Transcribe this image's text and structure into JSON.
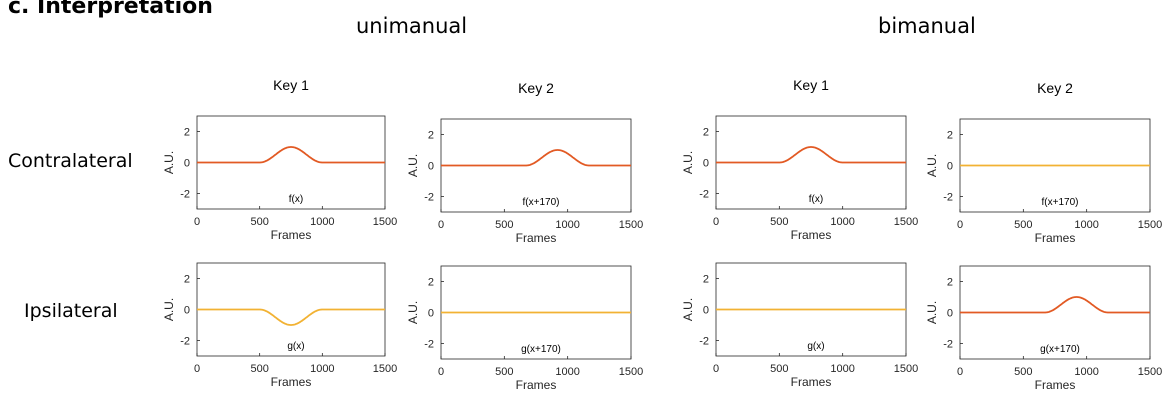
{
  "figure": {
    "panel_title": "c. Interpretation",
    "groups": [
      "unimanual",
      "bimanual"
    ],
    "rows": [
      "Contralateral",
      "Ipsilateral"
    ]
  },
  "colors": {
    "orange": "#e25a24",
    "yellow": "#f2b233",
    "axis": "#262626"
  },
  "chart_data": [
    {
      "id": "uni-contra-key1",
      "type": "line",
      "title": "Key 1",
      "annotation": "f(x)",
      "xlabel": "Frames",
      "ylabel": "A.U.",
      "xlim": [
        0,
        1500
      ],
      "ylim": [
        -3,
        3
      ],
      "xticks": [
        0,
        500,
        1000,
        1500
      ],
      "yticks": [
        2,
        0,
        -2
      ],
      "series": [
        {
          "color": "orange",
          "shift": 0,
          "amplitude": 1
        }
      ]
    },
    {
      "id": "uni-contra-key2",
      "type": "line",
      "title": "Key 2",
      "annotation": "f(x+170)",
      "xlabel": "Frames",
      "ylabel": "A.U.",
      "xlim": [
        0,
        1500
      ],
      "ylim": [
        -3,
        3
      ],
      "xticks": [
        0,
        500,
        1000,
        1500
      ],
      "yticks": [
        2,
        0,
        -2
      ],
      "series": [
        {
          "color": "orange",
          "shift": 170,
          "amplitude": 1
        }
      ]
    },
    {
      "id": "bi-contra-key1",
      "type": "line",
      "title": "Key 1",
      "annotation": "f(x)",
      "xlabel": "Frames",
      "ylabel": "A.U.",
      "xlim": [
        0,
        1500
      ],
      "ylim": [
        -3,
        3
      ],
      "xticks": [
        0,
        500,
        1000,
        1500
      ],
      "yticks": [
        2,
        0,
        -2
      ],
      "series": [
        {
          "color": "orange",
          "shift": 0,
          "amplitude": 1
        }
      ]
    },
    {
      "id": "bi-contra-key2",
      "type": "line",
      "title": "Key 2",
      "annotation": "f(x+170)",
      "xlabel": "Frames",
      "ylabel": "A.U.",
      "xlim": [
        0,
        1500
      ],
      "ylim": [
        -3,
        3
      ],
      "xticks": [
        0,
        500,
        1000,
        1500
      ],
      "yticks": [
        2,
        0,
        -2
      ],
      "series": [
        {
          "color": "yellow",
          "shift": 170,
          "amplitude": 0
        }
      ]
    },
    {
      "id": "uni-ipsi-key1",
      "type": "line",
      "title": "",
      "annotation": "g(x)",
      "xlabel": "Frames",
      "ylabel": "A.U.",
      "xlim": [
        0,
        1500
      ],
      "ylim": [
        -3,
        3
      ],
      "xticks": [
        0,
        500,
        1000,
        1500
      ],
      "yticks": [
        2,
        0,
        -2
      ],
      "series": [
        {
          "color": "yellow",
          "shift": 0,
          "amplitude": -1
        }
      ]
    },
    {
      "id": "uni-ipsi-key2",
      "type": "line",
      "title": "",
      "annotation": "g(x+170)",
      "xlabel": "Frames",
      "ylabel": "A.U.",
      "xlim": [
        0,
        1500
      ],
      "ylim": [
        -3,
        3
      ],
      "xticks": [
        0,
        500,
        1000,
        1500
      ],
      "yticks": [
        2,
        0,
        -2
      ],
      "series": [
        {
          "color": "yellow",
          "shift": 170,
          "amplitude": 0
        }
      ]
    },
    {
      "id": "bi-ipsi-key1",
      "type": "line",
      "title": "",
      "annotation": "g(x)",
      "xlabel": "Frames",
      "ylabel": "A.U.",
      "xlim": [
        0,
        1500
      ],
      "ylim": [
        -3,
        3
      ],
      "xticks": [
        0,
        500,
        1000,
        1500
      ],
      "yticks": [
        2,
        0,
        -2
      ],
      "series": [
        {
          "color": "yellow",
          "shift": 0,
          "amplitude": 0
        }
      ]
    },
    {
      "id": "bi-ipsi-key2",
      "type": "line",
      "title": "",
      "annotation": "g(x+170)",
      "xlabel": "Frames",
      "ylabel": "A.U.",
      "xlim": [
        0,
        1500
      ],
      "ylim": [
        -3,
        3
      ],
      "xticks": [
        0,
        500,
        1000,
        1500
      ],
      "yticks": [
        2,
        0,
        -2
      ],
      "series": [
        {
          "color": "orange",
          "shift": 170,
          "amplitude": 1
        }
      ]
    }
  ]
}
